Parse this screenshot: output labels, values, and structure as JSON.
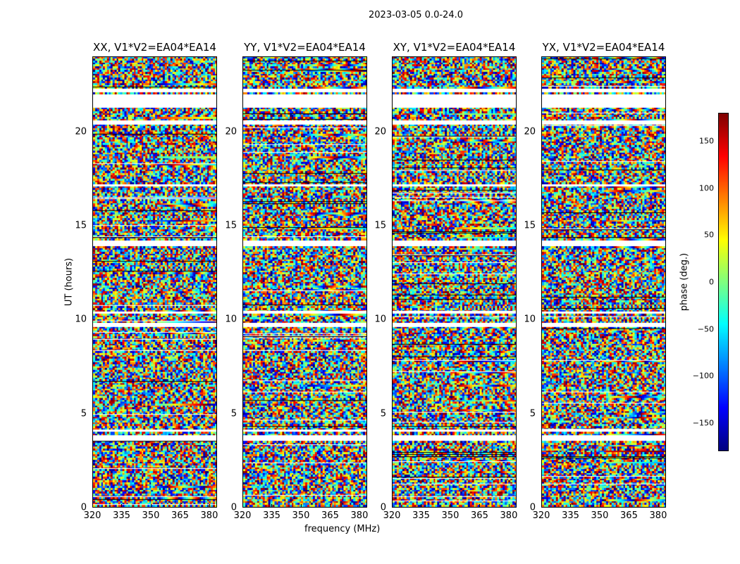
{
  "chart_data": {
    "type": "heatmap",
    "title": "2023-03-05 0.0-24.0",
    "xlabel": "frequency (MHz)",
    "ylabel": "UT (hours)",
    "xlim": [
      320,
      384
    ],
    "ylim": [
      0,
      24
    ],
    "xticks": [
      "320",
      "335",
      "350",
      "365",
      "380"
    ],
    "xtick_values": [
      320,
      335,
      350,
      365,
      380
    ],
    "yticks": [
      "0",
      "5",
      "10",
      "15",
      "20"
    ],
    "ytick_values": [
      0,
      5,
      10,
      15,
      20
    ],
    "panels": [
      {
        "title": "XX, V1*V2=EA04*EA14"
      },
      {
        "title": "YY, V1*V2=EA04*EA14"
      },
      {
        "title": "XY, V1*V2=EA04*EA14"
      },
      {
        "title": "YX, V1*V2=EA04*EA14"
      }
    ],
    "values_description": "phase noise",
    "flagged_ut_ranges": [
      [
        3.45,
        3.75
      ],
      [
        9.6,
        9.8
      ],
      [
        13.9,
        14.15
      ],
      [
        20.45,
        20.55
      ],
      [
        21.35,
        21.95
      ],
      [
        22.15,
        22.25
      ],
      [
        4.05,
        4.12
      ],
      [
        1.95,
        2.0
      ],
      [
        10.3,
        10.35
      ],
      [
        17.1,
        17.15
      ]
    ],
    "colorbar": {
      "label": "phase (deg.)",
      "range": [
        -180,
        180
      ],
      "ticks": [
        "150",
        "100",
        "50",
        "0",
        "−50",
        "−100",
        "−150"
      ],
      "tick_values": [
        150,
        100,
        50,
        0,
        -50,
        -100,
        -150
      ],
      "colormap": "jet"
    }
  }
}
